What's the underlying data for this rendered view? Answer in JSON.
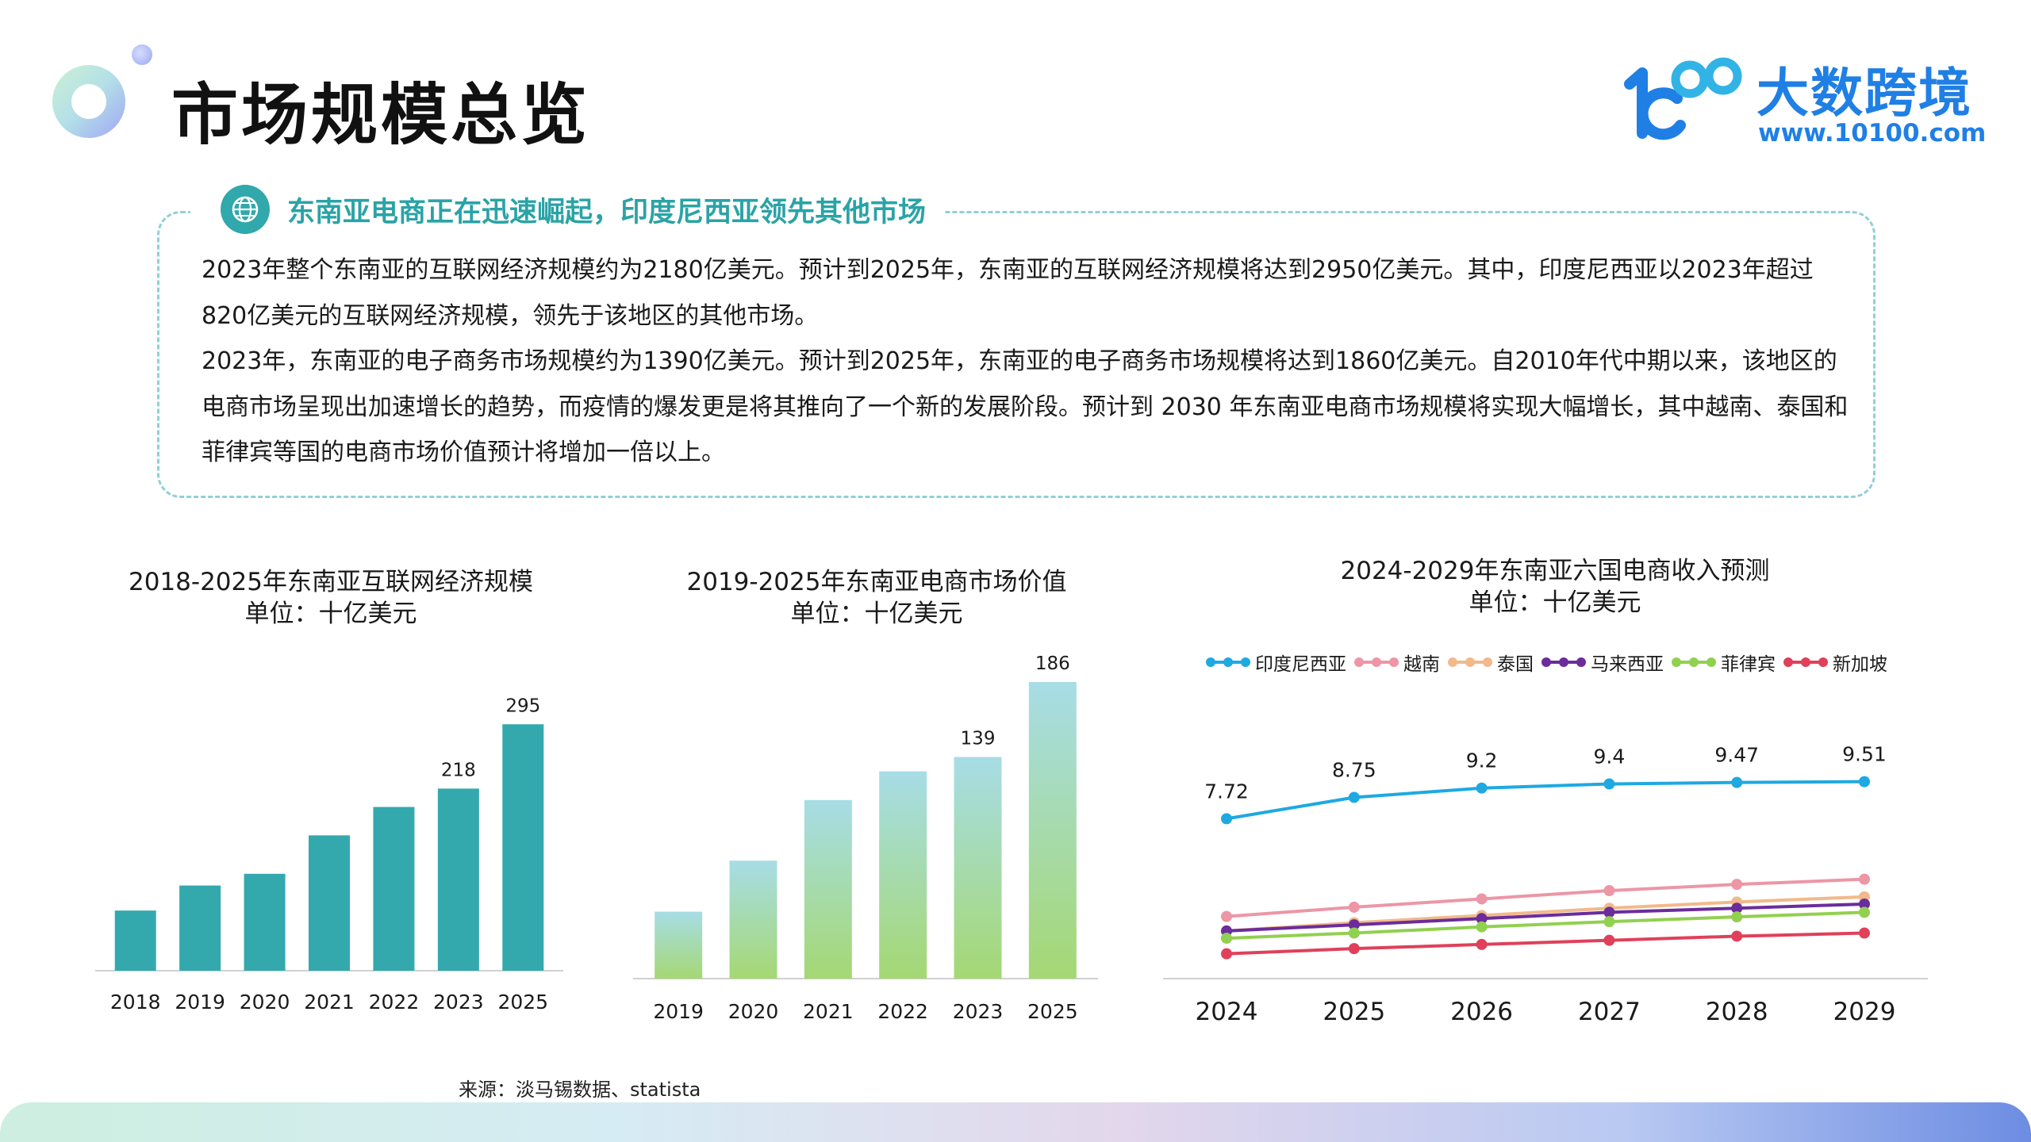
{
  "header": {
    "title": "市场规模总览",
    "brand_name": "大数跨境",
    "brand_url": "www.10100.com"
  },
  "summary": {
    "heading": "东南亚电商正在迅速崛起，印度尼西亚领先其他市场",
    "paragraph1": "2023年整个东南亚的互联网经济规模约为2180亿美元。预计到2025年，东南亚的互联网经济规模将达到2950亿美元。其中，印度尼西亚以2023年超过820亿美元的互联网经济规模，领先于该地区的其他市场。",
    "paragraph2": "2023年，东南亚的电子商务市场规模约为1390亿美元。预计到2025年，东南亚的电子商务市场规模将达到1860亿美元。自2010年代中期以来，该地区的电商市场呈现出加速增长的趋势，而疫情的爆发更是将其推向了一个新的发展阶段。预计到 2030 年东南亚电商市场规模将实现大幅增长，其中越南、泰国和菲律宾等国的电商市场价值预计将增加一倍以上。"
  },
  "source_note": "来源：淡马锡数据、statista",
  "colors": {
    "teal": "#33a9ae",
    "accent_text": "#2aa3a6",
    "brand_blue": "#1f7fe5",
    "bar2_top": "#a7dde6",
    "bar2_bottom": "#a5d873"
  },
  "icons": {
    "globe": "globe-icon",
    "brand": "brand-logo-icon"
  },
  "chart_data": [
    {
      "type": "bar",
      "title": "2018-2025年东南亚互联网经济规模",
      "subtitle": "单位：十亿美元",
      "categories": [
        "2018",
        "2019",
        "2020",
        "2021",
        "2022",
        "2023",
        "2025"
      ],
      "values": [
        72,
        102,
        116,
        162,
        196,
        218,
        295
      ],
      "data_labels": {
        "2023": "218",
        "2025": "295"
      },
      "ylim": [
        0,
        300
      ],
      "grid": false,
      "color": "#33a9ae"
    },
    {
      "type": "bar",
      "title": "2019-2025年东南亚电商市场价值",
      "subtitle": "单位：十亿美元",
      "categories": [
        "2019",
        "2020",
        "2021",
        "2022",
        "2023",
        "2025"
      ],
      "values": [
        42,
        74,
        112,
        130,
        139,
        186
      ],
      "data_labels": {
        "2023": "139",
        "2025": "186"
      },
      "ylim": [
        0,
        190
      ],
      "grid": false,
      "gradient": [
        "#a7dde6",
        "#a5d873"
      ]
    },
    {
      "type": "line",
      "title": "2024-2029年东南亚六国电商收入预测",
      "subtitle": "单位：十亿美元",
      "x": [
        "2024",
        "2025",
        "2026",
        "2027",
        "2028",
        "2029"
      ],
      "ylim": [
        0,
        11
      ],
      "grid": false,
      "legend_position": "top",
      "series": [
        {
          "name": "印度尼西亚",
          "color": "#1ea9e1",
          "values": [
            7.72,
            8.75,
            9.2,
            9.4,
            9.47,
            9.51
          ],
          "labels": [
            "7.72",
            "8.75",
            "9.2",
            "9.4",
            "9.47",
            "9.51"
          ]
        },
        {
          "name": "越南",
          "color": "#ec96a6",
          "values": [
            3.0,
            3.45,
            3.85,
            4.25,
            4.55,
            4.8
          ]
        },
        {
          "name": "泰国",
          "color": "#f2b98b",
          "values": [
            2.3,
            2.7,
            3.05,
            3.4,
            3.7,
            3.95
          ]
        },
        {
          "name": "马来西亚",
          "color": "#6b2c9c",
          "values": [
            2.3,
            2.6,
            2.9,
            3.2,
            3.4,
            3.6
          ]
        },
        {
          "name": "菲律宾",
          "color": "#92d050",
          "values": [
            1.95,
            2.2,
            2.5,
            2.75,
            2.98,
            3.2
          ]
        },
        {
          "name": "新加坡",
          "color": "#e0405a",
          "values": [
            1.2,
            1.45,
            1.65,
            1.85,
            2.05,
            2.2
          ]
        }
      ]
    }
  ]
}
